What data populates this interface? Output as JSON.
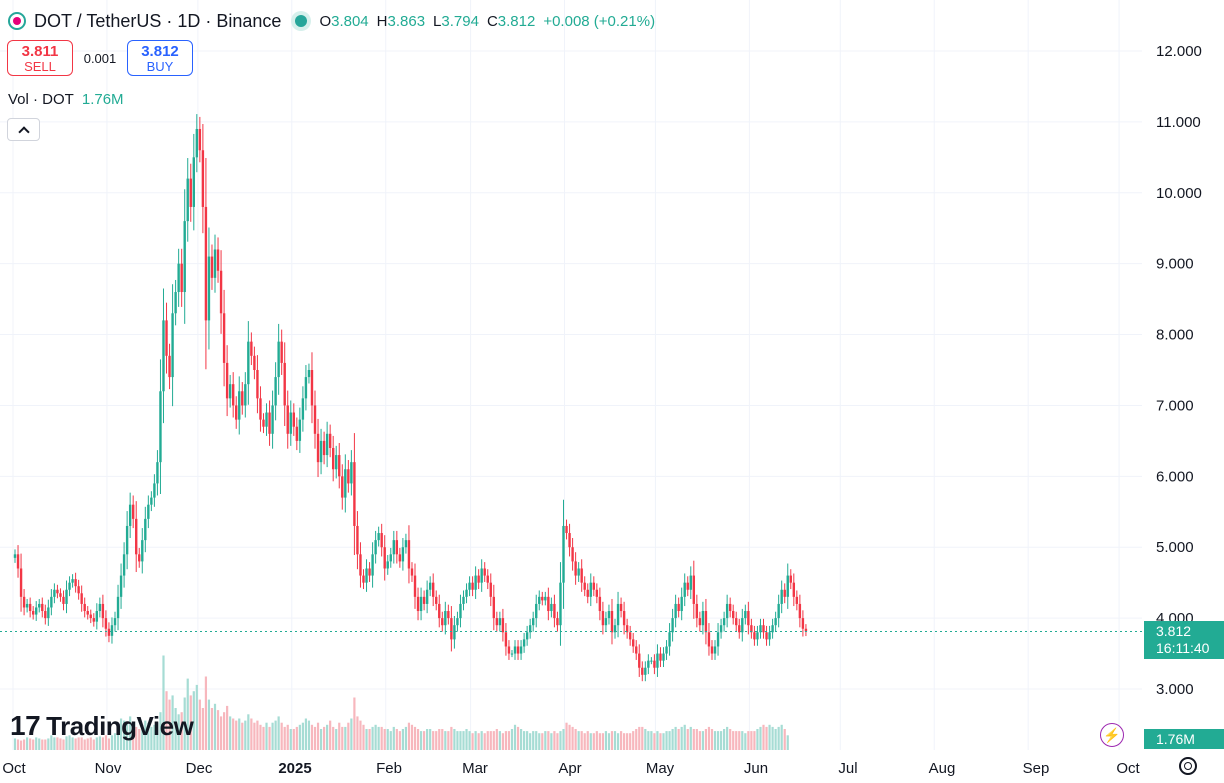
{
  "header": {
    "symbol": "DOT / TetherUS · 1D · Binance",
    "ohlc": [
      {
        "k": "O",
        "v": "3.804"
      },
      {
        "k": "H",
        "v": "3.863"
      },
      {
        "k": "L",
        "v": "3.794"
      },
      {
        "k": "C",
        "v": "3.812"
      },
      {
        "k": "",
        "v": "+0.008 (+0.21%)"
      }
    ]
  },
  "trade": {
    "sell_price": "3.811",
    "sell_label": "SELL",
    "spread": "0.001",
    "buy_price": "3.812",
    "buy_label": "BUY"
  },
  "volume": {
    "label": "Vol · DOT",
    "value": "1.76M"
  },
  "last_price": {
    "price": "3.812",
    "countdown": "16:11:40"
  },
  "volume_box": "1.76M",
  "branding": {
    "logo_mark": "17",
    "logo_text": "TradingView"
  },
  "colors": {
    "up": "#22ab94",
    "down": "#f23645",
    "grid": "#f0f3fa",
    "up_vol": "#a6dcd4",
    "down_vol": "#f7b7bd"
  },
  "chart_data": {
    "type": "candlestick",
    "x_tick_labels": [
      "Oct",
      "Nov",
      "Dec",
      "2025",
      "Feb",
      "Mar",
      "Apr",
      "May",
      "Jun",
      "Jul",
      "Aug",
      "Sep",
      "Oct"
    ],
    "y_tick_labels": [
      "3.000",
      "4.000",
      "5.000",
      "6.000",
      "7.000",
      "8.000",
      "9.000",
      "10.000",
      "11.000",
      "12.000"
    ],
    "ylim": [
      2.35,
      12.4
    ],
    "month_index": [
      0,
      31,
      61,
      92,
      123,
      151,
      182,
      212,
      243,
      273,
      304,
      335,
      365
    ],
    "closes": [
      4.9,
      4.7,
      4.3,
      4.15,
      4.2,
      4.1,
      4.05,
      4.15,
      4.2,
      4.1,
      4.0,
      4.15,
      4.3,
      4.4,
      4.35,
      4.3,
      4.2,
      4.4,
      4.5,
      4.55,
      4.45,
      4.35,
      4.2,
      4.1,
      4.05,
      4.0,
      3.95,
      4.1,
      4.2,
      4.0,
      3.85,
      3.75,
      3.9,
      4.0,
      4.3,
      4.6,
      4.9,
      5.3,
      5.6,
      5.4,
      4.9,
      4.8,
      5.1,
      5.4,
      5.6,
      5.7,
      5.9,
      6.2,
      7.2,
      8.2,
      7.7,
      7.4,
      8.3,
      8.6,
      9.0,
      8.6,
      9.6,
      10.2,
      9.8,
      10.5,
      10.9,
      10.6,
      9.8,
      8.2,
      9.1,
      8.8,
      9.2,
      8.9,
      8.3,
      7.6,
      7.1,
      7.3,
      7.0,
      6.8,
      7.2,
      7.0,
      7.3,
      7.9,
      7.7,
      7.5,
      7.1,
      6.8,
      6.7,
      6.9,
      6.6,
      7.0,
      7.4,
      7.9,
      7.6,
      7.0,
      6.6,
      6.9,
      6.7,
      6.5,
      6.8,
      7.1,
      7.4,
      7.5,
      7.0,
      6.6,
      6.2,
      6.5,
      6.3,
      6.6,
      6.4,
      6.1,
      6.3,
      6.0,
      5.7,
      6.1,
      5.9,
      6.2,
      5.3,
      4.9,
      4.6,
      4.5,
      4.7,
      4.6,
      4.9,
      5.1,
      5.2,
      5.0,
      4.7,
      4.8,
      4.9,
      5.1,
      4.9,
      4.8,
      5.0,
      5.1,
      4.7,
      4.6,
      4.3,
      4.1,
      4.3,
      4.2,
      4.4,
      4.5,
      4.3,
      4.2,
      4.0,
      3.9,
      4.1,
      4.0,
      3.7,
      3.9,
      4.0,
      4.2,
      4.3,
      4.4,
      4.5,
      4.4,
      4.6,
      4.5,
      4.7,
      4.6,
      4.5,
      4.3,
      4.0,
      3.9,
      4.0,
      3.8,
      3.6,
      3.5,
      3.5,
      3.6,
      3.5,
      3.6,
      3.7,
      3.8,
      3.9,
      4.0,
      4.2,
      4.3,
      4.25,
      4.3,
      4.1,
      4.2,
      4.0,
      3.9,
      4.5,
      5.3,
      5.2,
      5.0,
      4.8,
      4.6,
      4.7,
      4.5,
      4.4,
      4.3,
      4.5,
      4.4,
      4.3,
      4.1,
      3.9,
      4.0,
      4.1,
      3.8,
      3.9,
      4.2,
      4.1,
      3.9,
      3.8,
      3.7,
      3.6,
      3.5,
      3.3,
      3.2,
      3.3,
      3.4,
      3.4,
      3.3,
      3.5,
      3.4,
      3.5,
      3.6,
      3.8,
      4.0,
      4.2,
      4.1,
      4.3,
      4.5,
      4.4,
      4.6,
      4.2,
      4.0,
      3.9,
      4.1,
      3.8,
      3.6,
      3.5,
      3.6,
      3.8,
      3.9,
      4.0,
      4.2,
      4.1,
      4.0,
      3.9,
      3.8,
      4.0,
      4.1,
      3.9,
      3.8,
      3.7,
      3.8,
      3.9,
      3.8,
      3.7,
      3.8,
      3.9,
      4.0,
      4.2,
      4.4,
      4.3,
      4.6,
      4.5,
      4.3,
      4.2,
      4.0,
      3.85,
      3.812
    ],
    "volumes": [
      0.55,
      0.5,
      0.45,
      0.5,
      0.6,
      0.55,
      0.5,
      0.6,
      0.55,
      0.5,
      0.5,
      0.55,
      0.7,
      0.6,
      0.6,
      0.55,
      0.5,
      0.65,
      0.7,
      0.6,
      0.55,
      0.6,
      0.6,
      0.5,
      0.55,
      0.6,
      0.5,
      0.6,
      0.65,
      0.6,
      0.7,
      0.55,
      0.7,
      0.8,
      1.2,
      1.5,
      1.4,
      1.3,
      1.6,
      1.2,
      1.1,
      1.0,
      1.2,
      1.4,
      1.3,
      1.1,
      1.2,
      1.3,
      1.8,
      4.5,
      2.8,
      2.4,
      2.6,
      2.0,
      1.7,
      1.8,
      2.5,
      3.4,
      2.6,
      2.8,
      3.1,
      2.4,
      2.0,
      3.5,
      2.4,
      2.0,
      2.2,
      1.9,
      1.6,
      1.8,
      2.1,
      1.6,
      1.5,
      1.4,
      1.5,
      1.3,
      1.4,
      1.7,
      1.5,
      1.3,
      1.4,
      1.2,
      1.1,
      1.3,
      1.1,
      1.3,
      1.4,
      1.6,
      1.3,
      1.1,
      1.2,
      1.0,
      1.0,
      1.1,
      1.2,
      1.3,
      1.5,
      1.4,
      1.2,
      1.1,
      1.3,
      1.0,
      1.1,
      1.2,
      1.4,
      1.1,
      1.0,
      1.3,
      1.1,
      1.1,
      1.3,
      1.5,
      2.5,
      1.6,
      1.4,
      1.2,
      1.0,
      1.0,
      1.1,
      1.2,
      1.1,
      1.1,
      1.0,
      1.0,
      0.9,
      1.1,
      1.0,
      0.9,
      1.0,
      1.1,
      1.3,
      1.2,
      1.1,
      1.0,
      0.9,
      0.9,
      1.0,
      1.0,
      0.9,
      0.9,
      1.0,
      1.0,
      0.9,
      0.9,
      1.1,
      1.0,
      0.9,
      0.9,
      0.9,
      1.0,
      0.9,
      0.8,
      0.9,
      0.8,
      0.9,
      0.8,
      0.9,
      0.9,
      0.9,
      1.0,
      0.9,
      0.8,
      0.9,
      0.9,
      1.0,
      1.2,
      1.1,
      1.0,
      0.9,
      0.9,
      0.8,
      0.9,
      0.9,
      0.8,
      0.8,
      0.9,
      0.9,
      0.8,
      0.9,
      0.8,
      0.9,
      1.0,
      1.3,
      1.2,
      1.1,
      1.0,
      0.9,
      0.9,
      0.8,
      0.9,
      0.8,
      0.8,
      0.9,
      0.8,
      0.8,
      0.9,
      0.8,
      0.9,
      0.9,
      0.8,
      0.9,
      0.8,
      0.8,
      0.8,
      0.9,
      1.0,
      1.1,
      1.1,
      1.0,
      0.9,
      0.9,
      0.8,
      0.9,
      0.8,
      0.8,
      0.9,
      0.9,
      1.0,
      1.1,
      1.0,
      1.1,
      1.2,
      1.0,
      1.1,
      1.0,
      1.0,
      0.9,
      0.9,
      1.0,
      1.1,
      1.0,
      0.9,
      0.9,
      0.9,
      1.0,
      1.1,
      1.0,
      0.9,
      0.9,
      0.9,
      0.9,
      0.8,
      0.9,
      0.9,
      0.9,
      1.0,
      1.1,
      1.2,
      1.1,
      1.2,
      1.1,
      1.0,
      1.1,
      1.2,
      1.0,
      0.7
    ],
    "volume_ylim": [
      0,
      5.0
    ],
    "last_close": 3.812,
    "grid": true
  }
}
